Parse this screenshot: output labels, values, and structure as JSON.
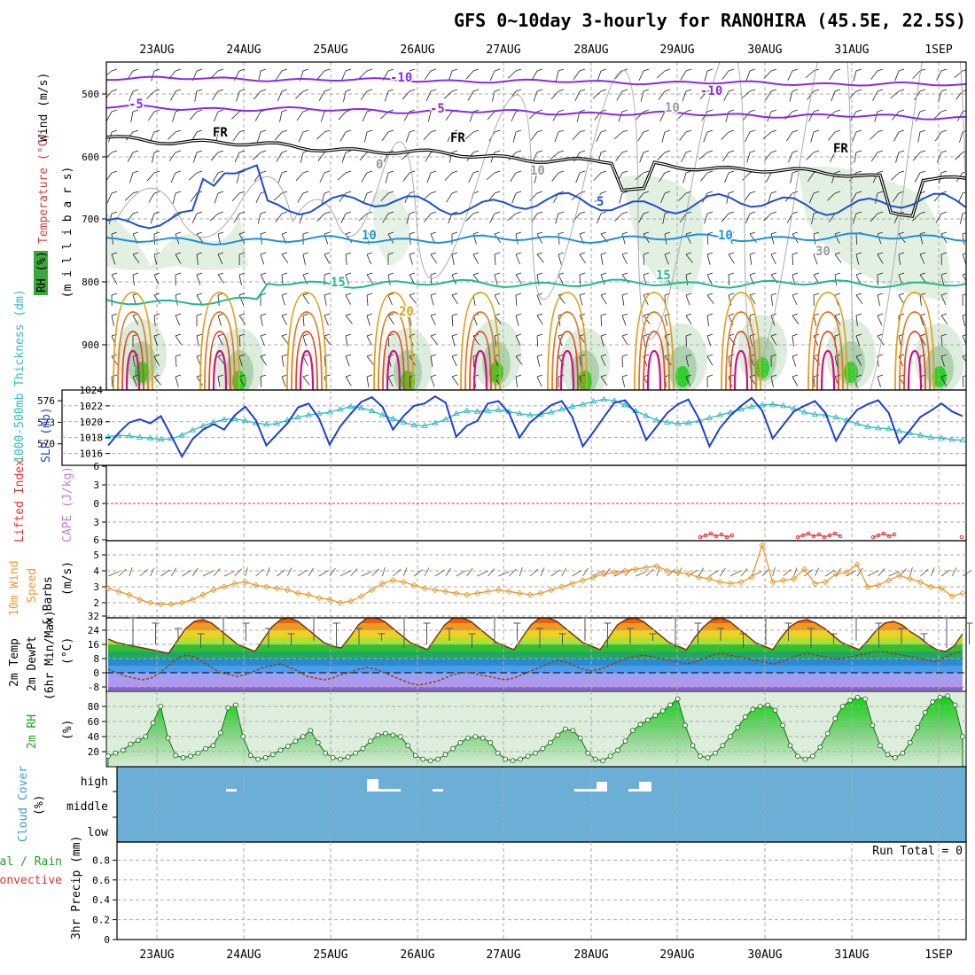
{
  "title": "GFS 0~10day 3-hourly for RANOHIRA (45.5E, 22.5S)",
  "dates": [
    "23AUG",
    "24AUG",
    "25AUG",
    "26AUG",
    "27AUG",
    "28AUG",
    "29AUG",
    "30AUG",
    "31AUG",
    "1SEP"
  ],
  "panels": {
    "upper": {
      "labels": [
        {
          "text": "Wind (m/s)",
          "color": "#000000"
        },
        {
          "text": "Temperature (°C)",
          "color": "#d04040"
        },
        {
          "text": "RH (%)",
          "color": "#000000"
        }
      ],
      "axis_label": "(m i l l i b a r s)",
      "yticks": [
        "500",
        "600",
        "700",
        "800",
        "900"
      ],
      "contour_labels": [
        {
          "text": "-10",
          "color": "#8a2be2"
        },
        {
          "text": "-10",
          "color": "#8a2be2"
        },
        {
          "text": "-5",
          "color": "#8a2be2"
        },
        {
          "text": "-5",
          "color": "#8a2be2"
        },
        {
          "text": "FR",
          "color": "#000000"
        },
        {
          "text": "FR",
          "color": "#000000"
        },
        {
          "text": "FR",
          "color": "#000000"
        },
        {
          "text": "5",
          "color": "#1f4fd0"
        },
        {
          "text": "10",
          "color": "#1e90e0"
        },
        {
          "text": "10",
          "color": "#1e90e0"
        },
        {
          "text": "15",
          "color": "#20b890"
        },
        {
          "text": "15",
          "color": "#20b890"
        },
        {
          "text": "20",
          "color": "#e0a020"
        },
        {
          "text": "10",
          "color": "#999999"
        },
        {
          "text": "10",
          "color": "#999999"
        },
        {
          "text": "0",
          "color": "#999999"
        },
        {
          "text": "30",
          "color": "#999999"
        }
      ]
    },
    "slp": {
      "label_left": "1000-500mb Thickness (dm)",
      "label_right": "SLP (mb)",
      "left_ticks": [
        "576",
        "573",
        "570"
      ],
      "right_ticks": [
        "1024",
        "1022",
        "1020",
        "1018",
        "1016"
      ]
    },
    "cape": {
      "label_li": "Lifted Index",
      "label_cape": "CAPE (J/kg)",
      "ticks": [
        "6",
        "3",
        "0",
        "3",
        "6"
      ]
    },
    "wind10": {
      "label_1": "10m Wind",
      "label_2": "Speed",
      "label_3": "& Barbs",
      "label_unit": "(m/s)",
      "ticks": [
        "5",
        "4",
        "3",
        "2"
      ]
    },
    "temp": {
      "label_1": "2m Temp",
      "label_2": "2m DewPt",
      "label_3": "(6hr Min/Max)",
      "label_unit": "(°C)",
      "ticks": [
        "32",
        "24",
        "16",
        "8",
        "0",
        "-8"
      ]
    },
    "rh": {
      "label": "2m RH",
      "unit": "(%)",
      "ticks": [
        "80",
        "60",
        "40",
        "20"
      ]
    },
    "cloud": {
      "label": "Cloud Cover",
      "unit": "(%)",
      "levels": [
        "high",
        "middle",
        "low"
      ]
    },
    "precip": {
      "label_1": "Total / Rain",
      "label_2": "Convective",
      "label_3": "3hr Precip (mm)",
      "ticks": [
        "0.8",
        "0.6",
        "0.4",
        "0.2",
        "0"
      ],
      "run_total": "Run Total = 0"
    }
  },
  "colors": {
    "slp": "#1f3fd0",
    "thickness": "#30b8c0",
    "wind_speed": "#e89a30",
    "temp_line": "#8b4513",
    "dewpoint": "#8b4513",
    "rh_green": "#20c020",
    "cloud": "#6baed6",
    "lifted_index": "#e03030",
    "cape": "#c080d0"
  },
  "chart_data": [
    {
      "type": "line",
      "title": "GFS 0~10day 3-hourly for RANOHIRA (45.5E, 22.5S)",
      "panel": "SLP and 1000-500mb thickness",
      "series": [
        {
          "name": "SLP (mb)",
          "values": [
            1017.0,
            1018.6,
            1019.9,
            1020.3,
            1019.8,
            1020.7,
            1018.2,
            1015.6,
            1017.8,
            1019.0,
            1019.7,
            1019.0,
            1020.8,
            1021.9,
            1020.2,
            1017.0,
            1018.4,
            1019.8,
            1021.8,
            1022.3,
            1020.4,
            1017.1,
            1019.4,
            1021.0,
            1022.5,
            1023.1,
            1021.9,
            1019.0,
            1020.7,
            1022.0,
            1022.3,
            1023.2,
            1022.4,
            1018.1,
            1019.5,
            1020.1,
            1022.3,
            1022.6,
            1021.1,
            1018.0,
            1019.9,
            1021.0,
            1022.1,
            1022.6,
            1020.6,
            1016.9,
            1018.7,
            1020.6,
            1022.4,
            1022.7,
            1021.1,
            1017.7,
            1019.4,
            1021.1,
            1022.2,
            1022.8,
            1020.4,
            1016.9,
            1019.2,
            1020.8,
            1022.0,
            1023.0,
            1021.4,
            1017.9,
            1019.6,
            1021.3,
            1022.0,
            1022.6,
            1021.1,
            1017.6,
            1019.9,
            1021.5,
            1022.2,
            1022.7,
            1021.1,
            1017.3,
            1018.9,
            1020.6,
            1021.4,
            1022.3,
            1021.3,
            1020.7
          ]
        },
        {
          "name": "1000-500mb Thickness (dm)",
          "values": [
            571.0,
            571.2,
            571.1,
            570.9,
            570.8,
            570.6,
            570.7,
            571.2,
            571.9,
            572.5,
            573.0,
            573.4,
            573.5,
            573.2,
            572.9,
            572.7,
            572.8,
            573.3,
            573.7,
            574.0,
            574.2,
            574.4,
            574.8,
            575.2,
            575.0,
            574.6,
            574.0,
            573.5,
            573.0,
            572.6,
            572.5,
            572.9,
            573.4,
            574.2,
            574.6,
            574.5,
            574.6,
            574.7,
            574.5,
            574.2,
            574.0,
            574.1,
            574.4,
            574.8,
            575.2,
            575.5,
            575.9,
            576.2,
            576.0,
            575.4,
            574.6,
            573.9,
            573.3,
            573.0,
            572.8,
            572.9,
            573.2,
            573.6,
            574.0,
            574.4,
            574.8,
            575.2,
            575.4,
            575.5,
            575.3,
            574.9,
            574.4,
            574.1,
            574.0,
            573.7,
            573.3,
            572.8,
            572.4,
            572.2,
            572.1,
            571.8,
            571.5,
            571.2,
            570.9,
            570.8,
            570.6,
            570.5
          ]
        }
      ]
    },
    {
      "type": "line",
      "panel": "10m Wind Speed",
      "series": [
        {
          "name": "10m Wind Speed (m/s)",
          "values": [
            2.9,
            2.7,
            2.5,
            2.2,
            2.0,
            1.9,
            1.9,
            2.0,
            2.2,
            2.5,
            2.8,
            3.0,
            3.2,
            3.3,
            3.1,
            3.0,
            2.9,
            2.8,
            2.6,
            2.5,
            2.3,
            2.2,
            2.0,
            2.1,
            2.4,
            2.8,
            3.2,
            3.4,
            3.3,
            3.1,
            2.9,
            2.8,
            2.7,
            2.6,
            2.5,
            2.6,
            2.7,
            2.8,
            2.7,
            2.6,
            2.5,
            2.6,
            2.8,
            3.0,
            3.2,
            3.4,
            3.6,
            3.8,
            3.9,
            4.0,
            4.1,
            4.2,
            4.3,
            4.0,
            3.9,
            3.8,
            3.6,
            3.5,
            3.3,
            3.2,
            3.3,
            3.6,
            5.6,
            3.3,
            3.4,
            3.5,
            4.1,
            3.2,
            3.3,
            3.8,
            3.9,
            4.4,
            3.0,
            3.1,
            3.4,
            3.7,
            3.5,
            3.3,
            3.0,
            2.9,
            2.4,
            2.6
          ]
        }
      ]
    },
    {
      "type": "line",
      "panel": "2m RH",
      "series": [
        {
          "name": "2m RH (%)",
          "values": [
            14,
            18,
            22,
            30,
            35,
            40,
            58,
            80,
            38,
            15,
            12,
            14,
            18,
            24,
            28,
            45,
            78,
            82,
            40,
            15,
            10,
            12,
            16,
            22,
            27,
            34,
            40,
            48,
            32,
            18,
            12,
            10,
            13,
            18,
            24,
            34,
            42,
            44,
            42,
            40,
            28,
            15,
            10,
            8,
            10,
            16,
            24,
            32,
            38,
            40,
            38,
            32,
            18,
            10,
            8,
            10,
            14,
            18,
            24,
            32,
            42,
            50,
            48,
            38,
            18,
            10,
            8,
            14,
            22,
            34,
            48,
            56,
            62,
            68,
            74,
            82,
            90,
            55,
            28,
            14,
            12,
            18,
            28,
            40,
            52,
            66,
            76,
            80,
            82,
            75,
            55,
            28,
            14,
            10,
            14,
            26,
            44,
            64,
            80,
            88,
            92,
            90,
            55,
            28,
            16,
            12,
            18,
            32,
            52,
            72,
            86,
            92,
            94,
            82,
            40
          ]
        }
      ]
    },
    {
      "type": "area",
      "panel": "2m Temp",
      "series": [
        {
          "name": "2m Temp (°C)",
          "values": [
            19,
            17,
            16,
            15,
            14,
            13,
            12,
            11,
            18,
            25,
            29,
            30,
            28,
            24,
            20,
            16,
            14,
            12,
            19,
            26,
            30,
            31,
            29,
            25,
            21,
            17,
            15,
            14,
            20,
            27,
            31,
            31,
            29,
            25,
            21,
            17,
            15,
            13,
            20,
            27,
            31,
            31,
            29,
            25,
            21,
            17,
            15,
            13,
            20,
            27,
            31,
            31,
            29,
            25,
            21,
            17,
            15,
            13,
            20,
            27,
            30,
            31,
            29,
            25,
            21,
            17,
            15,
            13,
            20,
            26,
            30,
            31,
            29,
            25,
            21,
            17,
            15,
            13,
            20,
            26,
            29,
            30,
            28,
            25,
            21,
            17,
            15,
            13,
            18,
            24,
            28,
            29,
            27,
            23,
            20,
            16,
            13,
            12,
            15,
            22
          ]
        },
        {
          "name": "2m DewPt (°C)",
          "values": [
            2,
            0,
            -2,
            -3,
            -4,
            -3,
            0,
            4,
            8,
            10,
            9,
            6,
            3,
            0,
            -1,
            -2,
            -1,
            1,
            3,
            4,
            5,
            3,
            1,
            -2,
            -3,
            -4,
            -3,
            -1,
            0,
            2,
            3,
            2,
            0,
            -2,
            -4,
            -6,
            -7,
            -6,
            -5,
            -3,
            -1,
            0,
            0,
            -1,
            -2,
            -3,
            -4,
            -3,
            -1,
            1,
            3,
            5,
            7,
            6,
            4,
            2,
            1,
            2,
            4,
            6,
            8,
            9,
            10,
            9,
            8,
            7,
            6,
            5,
            6,
            8,
            10,
            11,
            10,
            9,
            8,
            7,
            6,
            5,
            6,
            8,
            10,
            11,
            10,
            9,
            8,
            8,
            9,
            10,
            11,
            12,
            12,
            11,
            10,
            9,
            8,
            7,
            6,
            9,
            11,
            12
          ]
        }
      ]
    }
  ]
}
